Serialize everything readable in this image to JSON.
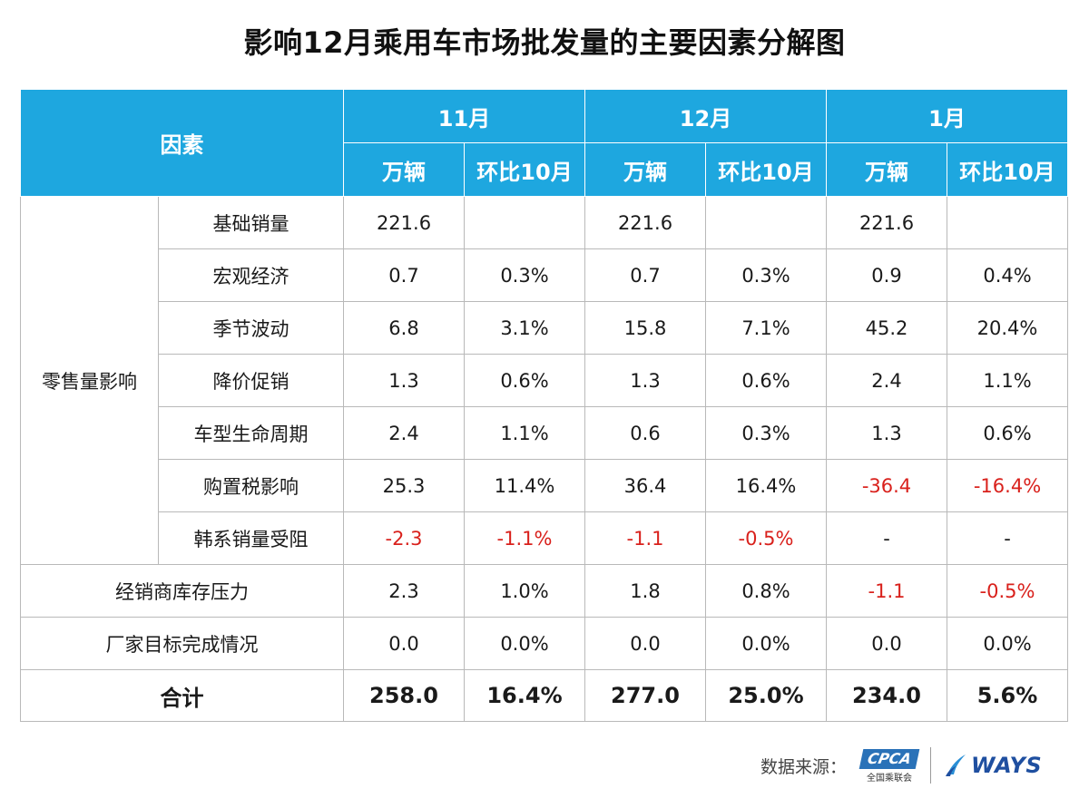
{
  "title": "影响12月乘用车市场批发量的主要因素分解图",
  "header": {
    "factor_label": "因素",
    "months": [
      "11月",
      "12月",
      "1月"
    ],
    "unit_label": "万辆",
    "mom_label": "环比10月"
  },
  "groups": {
    "retail": "零售量影响"
  },
  "rows": [
    {
      "name": "基础销量",
      "cells": [
        "221.6",
        "",
        "221.6",
        "",
        "221.6",
        ""
      ],
      "neg": [
        false,
        false,
        false,
        false,
        false,
        false
      ]
    },
    {
      "name": "宏观经济",
      "cells": [
        "0.7",
        "0.3%",
        "0.7",
        "0.3%",
        "0.9",
        "0.4%"
      ],
      "neg": [
        false,
        false,
        false,
        false,
        false,
        false
      ]
    },
    {
      "name": "季节波动",
      "cells": [
        "6.8",
        "3.1%",
        "15.8",
        "7.1%",
        "45.2",
        "20.4%"
      ],
      "neg": [
        false,
        false,
        false,
        false,
        false,
        false
      ]
    },
    {
      "name": "降价促销",
      "cells": [
        "1.3",
        "0.6%",
        "1.3",
        "0.6%",
        "2.4",
        "1.1%"
      ],
      "neg": [
        false,
        false,
        false,
        false,
        false,
        false
      ]
    },
    {
      "name": "车型生命周期",
      "cells": [
        "2.4",
        "1.1%",
        "0.6",
        "0.3%",
        "1.3",
        "0.6%"
      ],
      "neg": [
        false,
        false,
        false,
        false,
        false,
        false
      ]
    },
    {
      "name": "购置税影响",
      "cells": [
        "25.3",
        "11.4%",
        "36.4",
        "16.4%",
        "-36.4",
        "-16.4%"
      ],
      "neg": [
        false,
        false,
        false,
        false,
        true,
        true
      ]
    },
    {
      "name": "韩系销量受阻",
      "cells": [
        "-2.3",
        "-1.1%",
        "-1.1",
        "-0.5%",
        "-",
        "-"
      ],
      "neg": [
        true,
        true,
        true,
        true,
        false,
        false
      ]
    },
    {
      "name": "经销商库存压力",
      "cells": [
        "2.3",
        "1.0%",
        "1.8",
        "0.8%",
        "-1.1",
        "-0.5%"
      ],
      "neg": [
        false,
        false,
        false,
        false,
        true,
        true
      ]
    },
    {
      "name": "厂家目标完成情况",
      "cells": [
        "0.0",
        "0.0%",
        "0.0",
        "0.0%",
        "0.0",
        "0.0%"
      ],
      "neg": [
        false,
        false,
        false,
        false,
        false,
        false
      ]
    }
  ],
  "total": {
    "name": "合计",
    "cells": [
      "258.0",
      "16.4%",
      "277.0",
      "25.0%",
      "234.0",
      "5.6%"
    ]
  },
  "footer": {
    "source_label": "数据来源：",
    "cpca_logo": "CPCA",
    "cpca_sub": "全国乘联会",
    "ways_logo": "WAYS"
  },
  "colors": {
    "header_bg": "#1ea7df",
    "negative": "#d9211c",
    "ways_blue": "#1f4fa0"
  }
}
